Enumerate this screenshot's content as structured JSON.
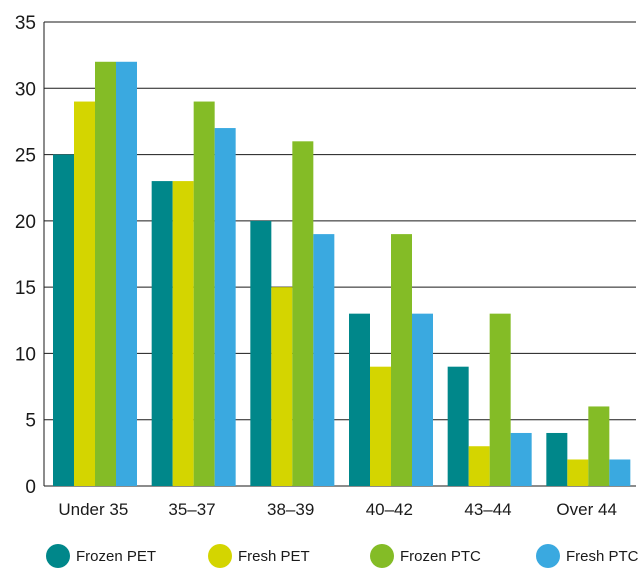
{
  "chart_data": {
    "type": "bar",
    "title": "",
    "xlabel": "",
    "ylabel": "",
    "ylim": [
      0,
      35
    ],
    "yticks": [
      0,
      5,
      10,
      15,
      20,
      25,
      30,
      35
    ],
    "grid": true,
    "legend_position": "bottom",
    "categories": [
      "Under 35",
      "35–37",
      "38–39",
      "40–42",
      "43–44",
      "Over 44"
    ],
    "series": [
      {
        "name": "Frozen PET",
        "color": "#00878a",
        "values": [
          25,
          23,
          20,
          13,
          9,
          4
        ]
      },
      {
        "name": "Fresh PET",
        "color": "#d4d500",
        "values": [
          29,
          23,
          15,
          9,
          3,
          2
        ]
      },
      {
        "name": "Frozen PTC",
        "color": "#84bc26",
        "values": [
          32,
          29,
          26,
          19,
          13,
          6
        ]
      },
      {
        "name": "Fresh PTC",
        "color": "#3aa9e0",
        "values": [
          32,
          27,
          19,
          13,
          4,
          2
        ]
      }
    ]
  }
}
